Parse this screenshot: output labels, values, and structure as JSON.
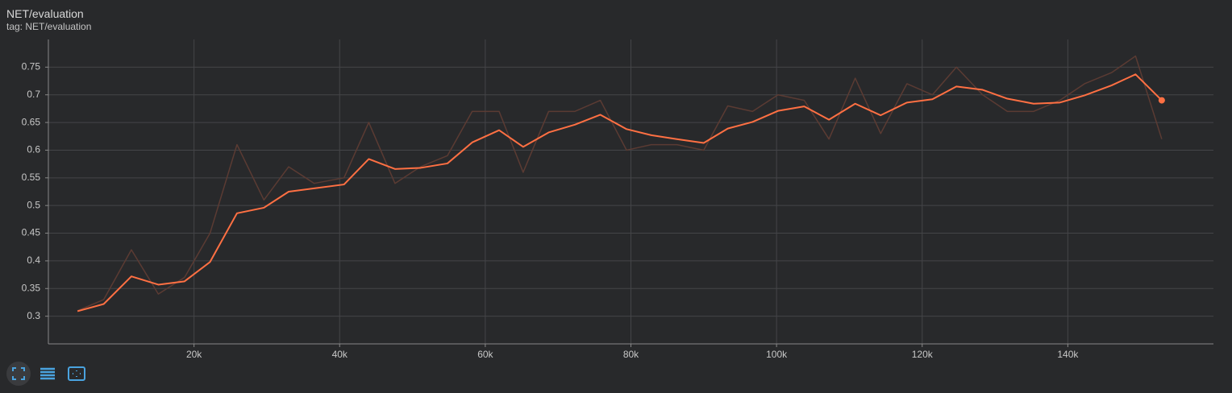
{
  "chart_data": {
    "type": "line",
    "title": "NET/evaluation",
    "subtitle": "tag: NET/evaluation",
    "x": [
      4000,
      7600,
      11400,
      15100,
      18700,
      22200,
      25900,
      29600,
      33000,
      36500,
      40600,
      44000,
      47600,
      51100,
      54800,
      58200,
      61900,
      65200,
      68700,
      72300,
      75800,
      79400,
      82800,
      86300,
      90000,
      93300,
      96700,
      100200,
      103800,
      107200,
      110800,
      114300,
      117900,
      121400,
      124700,
      128300,
      131700,
      135300,
      138900,
      142300,
      146000,
      149300,
      152900
    ],
    "series": [
      {
        "color": "#5b3b33",
        "values": [
          0.31,
          0.33,
          0.42,
          0.34,
          0.37,
          0.45,
          0.61,
          0.51,
          0.57,
          0.54,
          0.55,
          0.65,
          0.54,
          0.57,
          0.59,
          0.67,
          0.67,
          0.56,
          0.67,
          0.67,
          0.69,
          0.6,
          0.61,
          0.61,
          0.6,
          0.68,
          0.67,
          0.7,
          0.69,
          0.62,
          0.73,
          0.63,
          0.72,
          0.7,
          0.75,
          0.7,
          0.67,
          0.67,
          0.69,
          0.72,
          0.74,
          0.77,
          0.62
        ]
      },
      {
        "color": "#ff7043",
        "values": [
          0.309,
          0.322,
          0.372,
          0.357,
          0.363,
          0.398,
          0.486,
          0.496,
          0.525,
          0.531,
          0.538,
          0.584,
          0.566,
          0.568,
          0.576,
          0.614,
          0.636,
          0.606,
          0.632,
          0.646,
          0.664,
          0.638,
          0.627,
          0.62,
          0.613,
          0.639,
          0.651,
          0.671,
          0.679,
          0.655,
          0.684,
          0.663,
          0.686,
          0.692,
          0.715,
          0.709,
          0.693,
          0.684,
          0.686,
          0.699,
          0.717,
          0.737,
          0.69
        ]
      }
    ],
    "xlim": [
      0,
      160000
    ],
    "ylim": [
      0.25,
      0.8
    ],
    "xticks": [
      {
        "value": 20000,
        "label": "20k"
      },
      {
        "value": 40000,
        "label": "40k"
      },
      {
        "value": 60000,
        "label": "60k"
      },
      {
        "value": 80000,
        "label": "80k"
      },
      {
        "value": 100000,
        "label": "100k"
      },
      {
        "value": 120000,
        "label": "120k"
      },
      {
        "value": 140000,
        "label": "140k"
      }
    ],
    "yticks": [
      0.3,
      0.35,
      0.4,
      0.45,
      0.5,
      0.55,
      0.6,
      0.65,
      0.7,
      0.75
    ],
    "grid": true
  }
}
